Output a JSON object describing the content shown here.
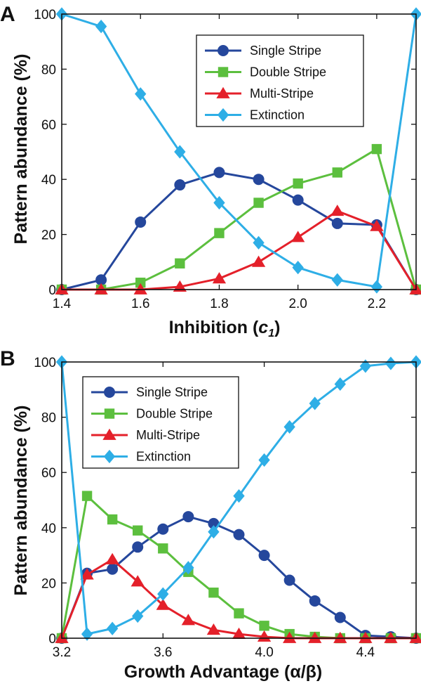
{
  "chart_data": [
    {
      "type": "line",
      "panel_label": "A",
      "ylabel": "Pattern abundance (%)",
      "xlabel": "Inhibition (",
      "xlabel_symbol": "c",
      "xlabel_subscript": "1",
      "xlabel_suffix": ")",
      "xlim": [
        1.4,
        2.3
      ],
      "ylim": [
        0,
        100
      ],
      "xticks": [
        1.4,
        1.6,
        1.8,
        2.0,
        2.2
      ],
      "xtick_labels": [
        "1.4",
        "1.6",
        "1.8",
        "2.0",
        "2.2"
      ],
      "yticks": [
        0,
        20,
        40,
        60,
        80,
        100
      ],
      "ytick_labels": [
        "0",
        "20",
        "40",
        "60",
        "80",
        "100"
      ],
      "legend": "top-right",
      "x": [
        1.4,
        1.5,
        1.6,
        1.7,
        1.8,
        1.9,
        2.0,
        2.1,
        2.2,
        2.3
      ],
      "series": [
        {
          "name": "Single Stripe",
          "color": "#25479c",
          "marker": "circle",
          "values": [
            0,
            3.5,
            24.5,
            38,
            42.5,
            40,
            32.5,
            24,
            23.5,
            0
          ]
        },
        {
          "name": "Double Stripe",
          "color": "#5cbf3e",
          "marker": "square",
          "values": [
            0,
            0,
            2.5,
            9.5,
            20.5,
            31.5,
            38.5,
            42.5,
            51,
            0
          ]
        },
        {
          "name": "Multi-Stripe",
          "color": "#e4202a",
          "marker": "triangle",
          "values": [
            0,
            0,
            0,
            1,
            4,
            10,
            19,
            28.5,
            23,
            0
          ]
        },
        {
          "name": "Extinction",
          "color": "#2eaee6",
          "marker": "diamond",
          "values": [
            100,
            95.5,
            71,
            50,
            31.5,
            17,
            8,
            3.5,
            1,
            100
          ]
        }
      ]
    },
    {
      "type": "line",
      "panel_label": "B",
      "ylabel": "Pattern abundance (%)",
      "xlabel": "Growth Advantage (α/β)",
      "xlim": [
        3.2,
        4.6
      ],
      "ylim": [
        0,
        100
      ],
      "xticks": [
        3.2,
        3.6,
        4.0,
        4.4
      ],
      "xtick_labels": [
        "3.2",
        "3.6",
        "4.0",
        "4.4"
      ],
      "yticks": [
        0,
        20,
        40,
        60,
        80,
        100
      ],
      "ytick_labels": [
        "0",
        "20",
        "40",
        "60",
        "80",
        "100"
      ],
      "legend": "top-left",
      "x": [
        3.2,
        3.3,
        3.4,
        3.5,
        3.6,
        3.7,
        3.8,
        3.9,
        4.0,
        4.1,
        4.2,
        4.3,
        4.4,
        4.5,
        4.6
      ],
      "series": [
        {
          "name": "Single Stripe",
          "color": "#25479c",
          "marker": "circle",
          "values": [
            0,
            23.5,
            25,
            33,
            39.5,
            44,
            41.5,
            37.5,
            30,
            21,
            13.5,
            7.5,
            1,
            0.5,
            0
          ]
        },
        {
          "name": "Double Stripe",
          "color": "#5cbf3e",
          "marker": "square",
          "values": [
            0,
            51.5,
            43,
            39,
            32.5,
            24,
            16.5,
            9,
            4.5,
            1.5,
            0.5,
            0,
            0,
            0,
            0
          ]
        },
        {
          "name": "Multi-Stripe",
          "color": "#e4202a",
          "marker": "triangle",
          "values": [
            0,
            23,
            28.5,
            20.5,
            12,
            6.5,
            3,
            1.5,
            0.5,
            0,
            0,
            0,
            0,
            0,
            0
          ]
        },
        {
          "name": "Extinction",
          "color": "#2eaee6",
          "marker": "diamond",
          "values": [
            100,
            1.5,
            3.5,
            8,
            16,
            25.5,
            38.5,
            51.5,
            64.5,
            76.5,
            85,
            92,
            98.5,
            99.5,
            100
          ]
        }
      ]
    }
  ]
}
